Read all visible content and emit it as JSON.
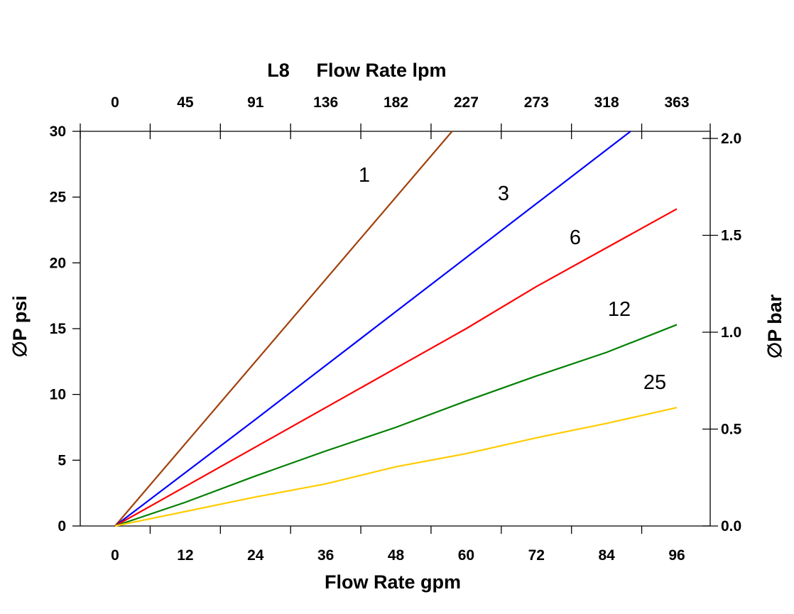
{
  "chart_data": {
    "type": "line",
    "title_prefix": "L8",
    "title": "Flow Rate lpm",
    "xlabel": "Flow Rate gpm",
    "ylabel": "∅P psi",
    "y2label": "∅P bar",
    "xlim": [
      -6,
      102
    ],
    "ylim": [
      0,
      30
    ],
    "y2lim": [
      0,
      2.07
    ],
    "x_ticks": [
      0,
      12,
      24,
      36,
      48,
      60,
      72,
      84,
      96
    ],
    "x_top_ticks": [
      "0",
      "45",
      "91",
      "136",
      "182",
      "227",
      "273",
      "318",
      "363"
    ],
    "y_ticks": [
      0,
      5,
      10,
      15,
      20,
      25,
      30
    ],
    "y2_ticks": [
      "0.0",
      "0.5",
      "1.0",
      "1.5",
      "2.0"
    ],
    "grid": false,
    "series": [
      {
        "name": "1",
        "color": "#a0400a",
        "x": [
          0,
          57.6
        ],
        "y": [
          0,
          30
        ]
      },
      {
        "name": "3",
        "color": "#0000ff",
        "x": [
          0,
          24,
          48,
          72,
          88.1
        ],
        "y": [
          0,
          8.1,
          16.3,
          24.5,
          30
        ]
      },
      {
        "name": "6",
        "color": "#ff0000",
        "x": [
          0,
          24,
          48,
          60,
          72,
          96
        ],
        "y": [
          0,
          6.0,
          12.0,
          15.0,
          18.2,
          24.1
        ]
      },
      {
        "name": "12",
        "color": "#008000",
        "x": [
          0,
          12,
          24,
          36,
          48,
          60,
          72,
          84,
          96
        ],
        "y": [
          0,
          1.8,
          3.8,
          5.7,
          7.5,
          9.5,
          11.4,
          13.2,
          15.3
        ]
      },
      {
        "name": "25",
        "color": "#ffcc00",
        "x": [
          0,
          12,
          24,
          36,
          48,
          60,
          72,
          84,
          96
        ],
        "y": [
          0,
          1.1,
          2.2,
          3.2,
          4.5,
          5.5,
          6.7,
          7.8,
          9.0
        ]
      }
    ]
  }
}
